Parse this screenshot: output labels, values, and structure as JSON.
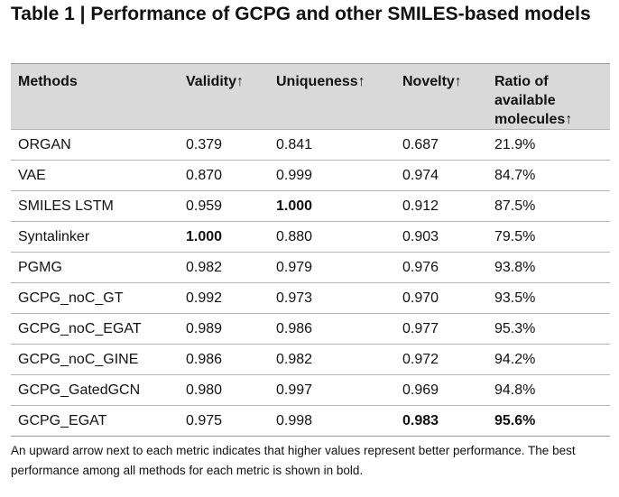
{
  "title": "Table 1 | Performance of GCPG and other SMILES-based models",
  "table": {
    "headers": [
      {
        "label": "Methods",
        "arrow": ""
      },
      {
        "label": "Validity",
        "arrow": "↑"
      },
      {
        "label": "Uniqueness",
        "arrow": "↑"
      },
      {
        "label": "Novelty",
        "arrow": "↑"
      },
      {
        "label": "Ratio of available molecules",
        "arrow": "↑"
      }
    ],
    "rows": [
      {
        "method": "ORGAN",
        "validity": "0.379",
        "uniqueness": "0.841",
        "novelty": "0.687",
        "ratio": "21.9%",
        "bold": []
      },
      {
        "method": "VAE",
        "validity": "0.870",
        "uniqueness": "0.999",
        "novelty": "0.974",
        "ratio": "84.7%",
        "bold": []
      },
      {
        "method": "SMILES LSTM",
        "validity": "0.959",
        "uniqueness": "1.000",
        "novelty": "0.912",
        "ratio": "87.5%",
        "bold": [
          "uniqueness"
        ]
      },
      {
        "method": "Syntalinker",
        "validity": "1.000",
        "uniqueness": "0.880",
        "novelty": "0.903",
        "ratio": "79.5%",
        "bold": [
          "validity"
        ]
      },
      {
        "method": "PGMG",
        "validity": "0.982",
        "uniqueness": "0.979",
        "novelty": "0.976",
        "ratio": "93.8%",
        "bold": []
      },
      {
        "method": "GCPG_noC_GT",
        "validity": "0.992",
        "uniqueness": "0.973",
        "novelty": "0.970",
        "ratio": "93.5%",
        "bold": []
      },
      {
        "method": "GCPG_noC_EGAT",
        "validity": "0.989",
        "uniqueness": "0.986",
        "novelty": "0.977",
        "ratio": "95.3%",
        "bold": []
      },
      {
        "method": "GCPG_noC_GINE",
        "validity": "0.986",
        "uniqueness": "0.982",
        "novelty": "0.972",
        "ratio": "94.2%",
        "bold": []
      },
      {
        "method": "GCPG_GatedGCN",
        "validity": "0.980",
        "uniqueness": "0.997",
        "novelty": "0.969",
        "ratio": "94.8%",
        "bold": []
      },
      {
        "method": "GCPG_EGAT",
        "validity": "0.975",
        "uniqueness": "0.998",
        "novelty": "0.983",
        "ratio": "95.6%",
        "bold": [
          "novelty",
          "ratio"
        ]
      }
    ]
  },
  "footnote": "An upward arrow next to each metric indicates that higher values represent better performance. The best performance among all methods for each metric is shown in bold."
}
